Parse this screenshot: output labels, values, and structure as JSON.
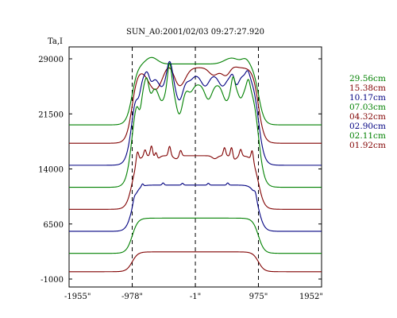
{
  "chart_data": {
    "type": "line",
    "title": "SUN_A0:2001/02/03 09:27:27.920",
    "ylabel": "Ta,I",
    "xlabel": "",
    "x_unit": "arcsec",
    "xlim": [
      -1955,
      1952
    ],
    "ylim": [
      -1000,
      32000
    ],
    "yticks": [
      29000,
      21500,
      14000,
      6500,
      -1000
    ],
    "ytick_labels": [
      "29000",
      "21500",
      "14000",
      "6500",
      "-1000"
    ],
    "xticks": [
      -1955,
      -978,
      -1,
      975,
      1952
    ],
    "xtick_labels": [
      "-1955\"",
      "-978\"",
      "-1\"",
      "975\"",
      "1952\""
    ],
    "vlines": [
      -978,
      -1,
      975
    ],
    "legend_position": "right",
    "grid": false,
    "series": [
      {
        "name": "29.56cm",
        "color": "#008000",
        "baseline": 20000,
        "peak": 8300,
        "notches": [],
        "spikes": [
          [
            -680,
            900,
            90
          ],
          [
            560,
            800,
            110
          ],
          [
            780,
            700,
            60
          ]
        ]
      },
      {
        "name": "15.38cm",
        "color": "#800000",
        "baseline": 17500,
        "peak": 10300,
        "notches": [
          [
            -620,
            3000,
            110
          ],
          [
            -250,
            2600,
            90
          ],
          [
            280,
            1000,
            70
          ],
          [
            480,
            1200,
            70
          ]
        ],
        "spikes": [
          [
            -400,
            1000,
            80
          ],
          [
            560,
            400,
            60
          ]
        ]
      },
      {
        "name": "10.17cm",
        "color": "#000080",
        "baseline": 14500,
        "peak": 12300,
        "notches": [
          [
            -880,
            2000,
            35
          ],
          [
            -700,
            1200,
            45
          ],
          [
            -520,
            1600,
            60
          ],
          [
            -250,
            3400,
            60
          ],
          [
            -90,
            700,
            50
          ],
          [
            150,
            1500,
            60
          ],
          [
            420,
            1500,
            60
          ],
          [
            620,
            1600,
            50
          ]
        ],
        "spikes": [
          [
            -740,
            1200,
            35
          ],
          [
            -400,
            2200,
            40
          ],
          [
            580,
            1200,
            30
          ],
          [
            810,
            900,
            30
          ]
        ]
      },
      {
        "name": "07.03cm",
        "color": "#008000",
        "baseline": 11500,
        "peak": 14000,
        "notches": [
          [
            -860,
            2600,
            30
          ],
          [
            -700,
            1400,
            40
          ],
          [
            -520,
            2200,
            55
          ],
          [
            -250,
            4000,
            55
          ],
          [
            -80,
            1000,
            45
          ],
          [
            200,
            2000,
            55
          ],
          [
            480,
            2200,
            55
          ],
          [
            700,
            1800,
            45
          ]
        ],
        "spikes": [
          [
            -750,
            1600,
            30
          ],
          [
            -400,
            3200,
            30
          ],
          [
            580,
            1500,
            25
          ],
          [
            820,
            1200,
            25
          ]
        ]
      },
      {
        "name": "04.32cm",
        "color": "#800000",
        "baseline": 8500,
        "peak": 7300,
        "notches": [
          [
            -600,
            500,
            40
          ],
          [
            -300,
            400,
            40
          ],
          [
            300,
            400,
            40
          ],
          [
            600,
            500,
            40
          ]
        ],
        "spikes": [
          [
            -900,
            1800,
            20
          ],
          [
            -780,
            900,
            18
          ],
          [
            -680,
            1400,
            18
          ],
          [
            -610,
            900,
            18
          ],
          [
            -400,
            1300,
            18
          ],
          [
            -230,
            800,
            18
          ],
          [
            450,
            1100,
            18
          ],
          [
            560,
            1400,
            18
          ],
          [
            700,
            900,
            18
          ],
          [
            880,
            1600,
            18
          ]
        ]
      },
      {
        "name": "02.90cm",
        "color": "#000080",
        "baseline": 5500,
        "peak": 6300,
        "notches": [],
        "spikes": [
          [
            -950,
            700,
            20
          ],
          [
            -820,
            350,
            15
          ],
          [
            -500,
            300,
            15
          ],
          [
            -200,
            250,
            15
          ],
          [
            200,
            250,
            15
          ],
          [
            500,
            300,
            15
          ],
          [
            930,
            900,
            20
          ]
        ]
      },
      {
        "name": "02.11cm",
        "color": "#008000",
        "baseline": 2500,
        "peak": 4800,
        "notches": [],
        "spikes": []
      },
      {
        "name": "01.92cm",
        "color": "#800000",
        "baseline": 0,
        "peak": 2700,
        "notches": [],
        "spikes": []
      }
    ]
  }
}
